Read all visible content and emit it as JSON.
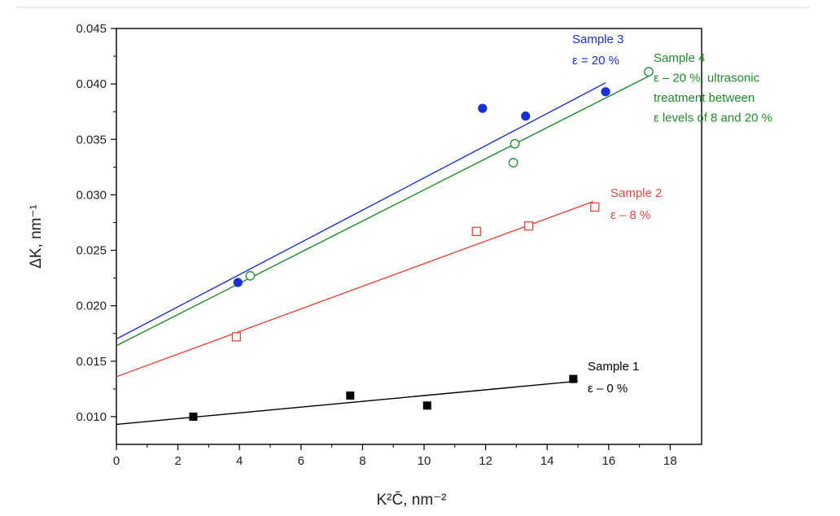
{
  "chart_data": {
    "type": "scatter",
    "xlabel": "K²C̄, nm⁻²",
    "ylabel": "ΔK, nm⁻¹",
    "xlim": [
      0,
      19
    ],
    "ylim": [
      0.0075,
      0.045
    ],
    "x_ticks": [
      0,
      2,
      4,
      6,
      8,
      10,
      12,
      14,
      16,
      18
    ],
    "y_ticks": [
      0.01,
      0.015,
      0.02,
      0.025,
      0.03,
      0.035,
      0.04,
      0.045
    ],
    "x_tick_labels": [
      "0",
      "2",
      "4",
      "6",
      "8",
      "10",
      "12",
      "14",
      "16",
      "18"
    ],
    "y_tick_labels": [
      "0.010",
      "0.015",
      "0.020",
      "0.025",
      "0.030",
      "0.035",
      "0.040",
      "0.045"
    ],
    "grid": false,
    "series": [
      {
        "name": "Sample 1",
        "label_lines": [
          "Sample 1",
          "ε – 0 %"
        ],
        "color": "#000000",
        "marker": "square-filled",
        "points": [
          [
            2.5,
            0.01
          ],
          [
            7.6,
            0.0119
          ],
          [
            10.1,
            0.011
          ],
          [
            14.85,
            0.0134
          ]
        ],
        "fit": {
          "x": [
            0,
            15.0
          ],
          "y": [
            0.0093,
            0.0132
          ]
        }
      },
      {
        "name": "Sample 2",
        "label_lines": [
          "Sample 2",
          "ε – 8 %"
        ],
        "color": "#e8473f",
        "marker": "square-open",
        "points": [
          [
            3.9,
            0.0172
          ],
          [
            11.7,
            0.0267
          ],
          [
            13.4,
            0.0272
          ],
          [
            15.55,
            0.0289
          ]
        ],
        "fit": {
          "x": [
            0,
            15.5
          ],
          "y": [
            0.0136,
            0.0294
          ]
        }
      },
      {
        "name": "Sample 3",
        "label_lines": [
          "Sample 3",
          "ε = 20 %"
        ],
        "color": "#1a2fd6",
        "marker": "circle-filled",
        "points": [
          [
            3.95,
            0.0221
          ],
          [
            11.9,
            0.0378
          ],
          [
            13.3,
            0.0371
          ],
          [
            15.9,
            0.0393
          ]
        ],
        "fit": {
          "x": [
            0,
            15.9
          ],
          "y": [
            0.017,
            0.0401
          ]
        }
      },
      {
        "name": "Sample 4",
        "label_lines": [
          "Sample 4",
          "ε – 20 %, ultrasonic",
          "treatment between",
          "ε levels of 8 and 20 %"
        ],
        "color": "#1f8a2a",
        "marker": "circle-open",
        "points": [
          [
            4.35,
            0.0227
          ],
          [
            12.9,
            0.0329
          ],
          [
            12.95,
            0.0346
          ],
          [
            17.3,
            0.0411
          ]
        ],
        "fit": {
          "x": [
            0,
            17.3
          ],
          "y": [
            0.0164,
            0.0407
          ]
        }
      }
    ]
  }
}
